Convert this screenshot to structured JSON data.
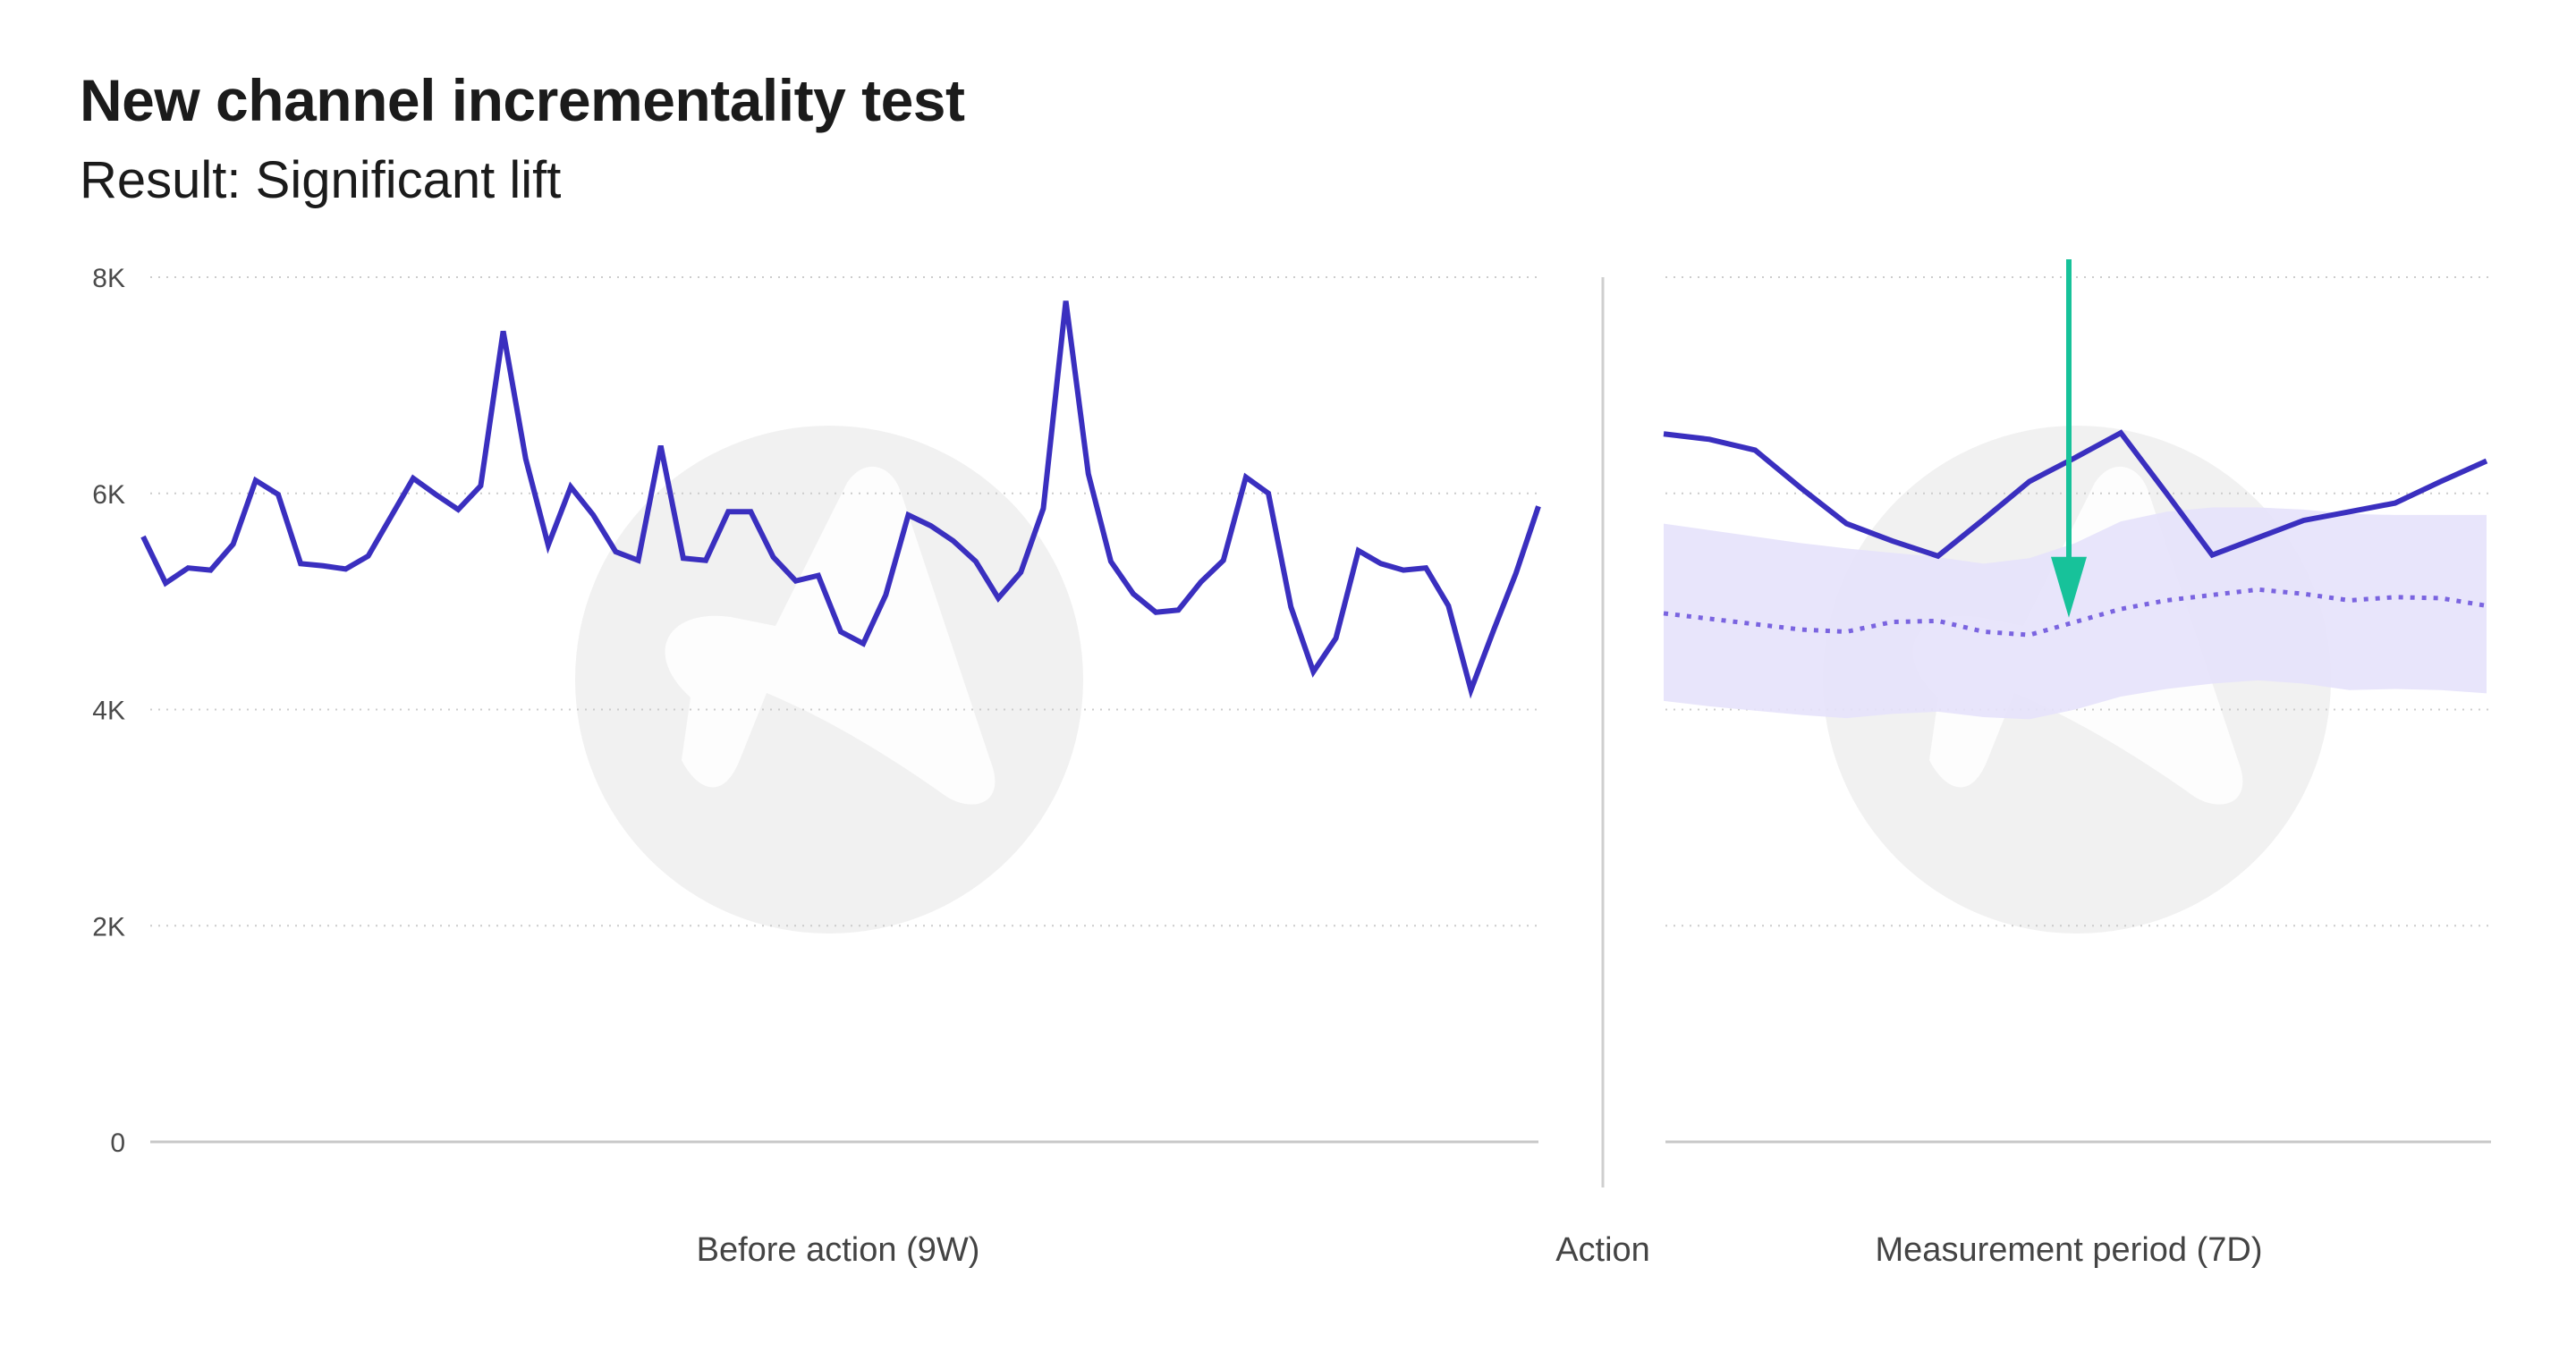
{
  "title": "New channel incrementality test",
  "subtitle": "Result: Significant lift",
  "colors": {
    "actual": "#3a2fbf",
    "counterfactual": "#7a64e0",
    "band": "#e5e2fb",
    "arrow": "#17c29a",
    "grid": "#cccccc",
    "divider": "#cfcfcf",
    "watermark": "#f1f1f1"
  },
  "chart_data": {
    "type": "line",
    "title": "New channel incrementality test",
    "subtitle": "Result: Significant lift",
    "ylim": [
      0,
      8000
    ],
    "y_ticks": [
      0,
      2000,
      4000,
      6000,
      8000
    ],
    "y_tick_labels": [
      "0",
      "2K",
      "4K",
      "6K",
      "8K"
    ],
    "grid": "horizontal dotted",
    "sections": {
      "before": "Before action (9W)",
      "action": "Action",
      "after": "Measurement period (7D)"
    },
    "before_action": {
      "values": [
        5600,
        5170,
        5310,
        5290,
        5530,
        6120,
        5990,
        5350,
        5330,
        5300,
        5420,
        5780,
        6140,
        5990,
        5850,
        6070,
        7500,
        6320,
        5520,
        6060,
        5800,
        5460,
        5380,
        6440,
        5400,
        5380,
        5830,
        5830,
        5410,
        5190,
        5240,
        4720,
        4610,
        5060,
        5800,
        5700,
        5560,
        5370,
        5030,
        5270,
        5860,
        7780,
        6180,
        5370,
        5070,
        4900,
        4920,
        5180,
        5380,
        6150,
        6000,
        4950,
        4350,
        4660,
        5470,
        5350,
        5290,
        5310,
        4960,
        4180,
        4730,
        5260,
        5880
      ]
    },
    "measurement_period": {
      "actual": [
        6550,
        6500,
        6400,
        6050,
        5720,
        5560,
        5420,
        5760,
        6110,
        6330,
        6560,
        6000,
        5430,
        5590,
        5750,
        5830,
        5910,
        6110,
        6300
      ],
      "expected": [
        4890,
        4840,
        4790,
        4740,
        4720,
        4810,
        4820,
        4720,
        4690,
        4810,
        4930,
        5010,
        5060,
        5110,
        5070,
        5010,
        5040,
        5030,
        4960
      ],
      "band_upper": [
        5720,
        5660,
        5600,
        5540,
        5490,
        5450,
        5410,
        5350,
        5400,
        5540,
        5740,
        5830,
        5870,
        5870,
        5850,
        5810,
        5800,
        5800,
        5800
      ],
      "band_lower": [
        4080,
        4030,
        3990,
        3950,
        3920,
        3960,
        3980,
        3930,
        3910,
        4000,
        4120,
        4190,
        4240,
        4270,
        4240,
        4180,
        4190,
        4180,
        4150
      ]
    },
    "annotation": {
      "type": "arrow",
      "meaning": "lift",
      "to_value": 4850
    }
  }
}
